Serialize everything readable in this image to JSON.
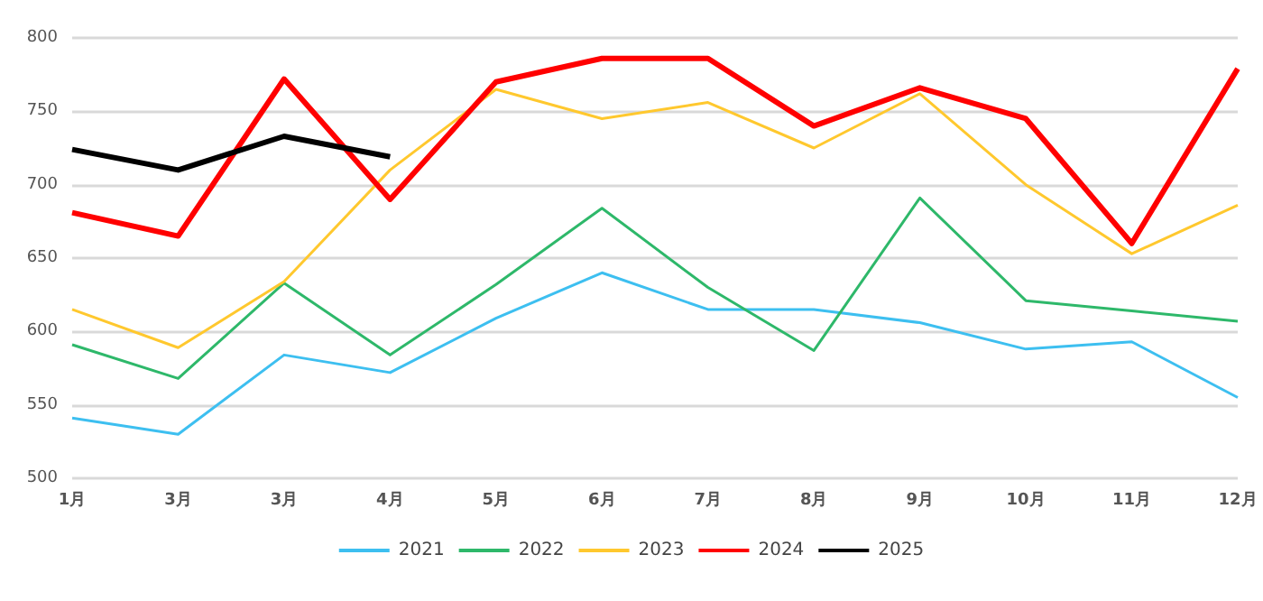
{
  "chart_data": {
    "type": "line",
    "categories": [
      "1月",
      "3月",
      "3月",
      "4月",
      "5月",
      "6月",
      "7月",
      "8月",
      "9月",
      "10月",
      "11月",
      "12月"
    ],
    "series": [
      {
        "name": "2021",
        "color": "#3dbff0",
        "values": [
          541,
          530,
          584,
          572,
          609,
          640,
          615,
          615,
          606,
          588,
          593,
          555
        ]
      },
      {
        "name": "2022",
        "color": "#2eb86a",
        "values": [
          591,
          568,
          633,
          584,
          632,
          684,
          630,
          587,
          691,
          621,
          614,
          607
        ]
      },
      {
        "name": "2023",
        "color": "#ffc82e",
        "values": [
          615,
          589,
          634,
          710,
          765,
          745,
          756,
          725,
          762,
          700,
          653,
          686
        ]
      },
      {
        "name": "2024",
        "color": "#ff0000",
        "values": [
          681,
          665,
          772,
          690,
          770,
          786,
          786,
          740,
          766,
          745,
          660,
          779
        ]
      },
      {
        "name": "2025",
        "color": "#000000",
        "values": [
          724,
          710,
          733,
          719,
          null,
          null,
          null,
          null,
          null,
          null,
          null,
          null
        ]
      }
    ],
    "ylim": [
      500,
      800
    ],
    "yticks": [
      500,
      550,
      600,
      650,
      700,
      750,
      800
    ],
    "grid": "y",
    "legend": "bottom",
    "marker": "none",
    "line_style": "solid"
  }
}
